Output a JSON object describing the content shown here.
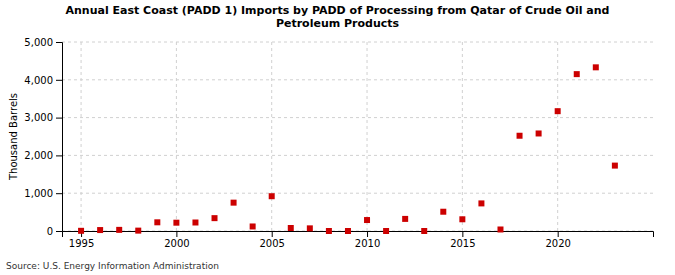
{
  "chart_data": {
    "type": "scatter",
    "title": "Annual East Coast (PADD 1) Imports by PADD of Processing from Qatar of Crude Oil and\nPetroleum Products",
    "y_label": "Thousand Barrels",
    "annotations": [
      "Source: U.S. Energy Information Administration"
    ],
    "x": [
      1995,
      1996,
      1997,
      1998,
      1999,
      2000,
      2001,
      2002,
      2003,
      2004,
      2005,
      2006,
      2007,
      2008,
      2009,
      2010,
      2011,
      2012,
      2013,
      2014,
      2015,
      2016,
      2017,
      2018,
      2019,
      2020,
      2021,
      2022,
      2023
    ],
    "values": [
      5,
      25,
      30,
      10,
      230,
      220,
      225,
      340,
      750,
      120,
      920,
      80,
      70,
      0,
      0,
      290,
      0,
      320,
      0,
      510,
      310,
      730,
      40,
      2520,
      2580,
      3170,
      4150,
      4330,
      1730
    ],
    "color": "#cc0000",
    "marker": "square",
    "xlim": [
      1994,
      2025
    ],
    "xticks": [
      1995,
      2000,
      2005,
      2010,
      2015,
      2020
    ],
    "ylim": [
      0,
      5000
    ],
    "yticks": [
      0,
      {
        "value": 1000,
        "label": "1,000"
      },
      {
        "value": 2000,
        "label": "2,000"
      },
      {
        "value": 3000,
        "label": "3,000"
      },
      {
        "value": 4000,
        "label": "4,000"
      },
      {
        "value": 5000,
        "label": "5,000"
      }
    ],
    "grid": true
  }
}
